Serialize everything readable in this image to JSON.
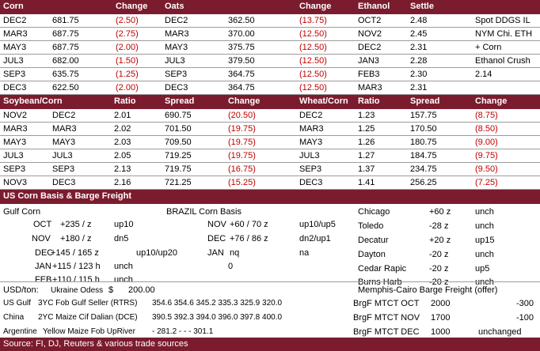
{
  "table1": {
    "headers": [
      "Corn",
      "Change",
      "Oats",
      "Change",
      "Ethanol",
      "Settle"
    ],
    "rows": [
      {
        "c_month": "DEC2",
        "c_price": "681.75",
        "c_chg": "(2.50)",
        "o_month": "DEC2",
        "o_price": "362.50",
        "o_chg": "(13.75)",
        "e_month": "OCT2",
        "e_settle": "2.48",
        "note": "Spot DDGS IL"
      },
      {
        "c_month": "MAR3",
        "c_price": "687.75",
        "c_chg": "(2.75)",
        "o_month": "MAR3",
        "o_price": "370.00",
        "o_chg": "(12.50)",
        "e_month": "NOV2",
        "e_settle": "2.45",
        "note": "NYM Chi. ETH"
      },
      {
        "c_month": "MAY3",
        "c_price": "687.75",
        "c_chg": "(2.00)",
        "o_month": "MAY3",
        "o_price": "375.75",
        "o_chg": "(12.50)",
        "e_month": "DEC2",
        "e_settle": "2.31",
        "note": "+ Corn"
      },
      {
        "c_month": "JUL3",
        "c_price": "682.00",
        "c_chg": "(1.50)",
        "o_month": "JUL3",
        "o_price": "379.50",
        "o_chg": "(12.50)",
        "e_month": "JAN3",
        "e_settle": "2.28",
        "note": "Ethanol Crush"
      },
      {
        "c_month": "SEP3",
        "c_price": "635.75",
        "c_chg": "(1.25)",
        "o_month": "SEP3",
        "o_price": "364.75",
        "o_chg": "(12.50)",
        "e_month": "FEB3",
        "e_settle": "2.30",
        "note": "2.14"
      },
      {
        "c_month": "DEC3",
        "c_price": "622.50",
        "c_chg": "(2.00)",
        "o_month": "DEC3",
        "o_price": "364.75",
        "o_chg": "(12.50)",
        "e_month": "MAR3",
        "e_settle": "2.31",
        "note": ""
      }
    ]
  },
  "table2": {
    "headers": [
      "Soybean/Corn",
      "Ratio",
      "Spread",
      "Change",
      "Wheat/Corn",
      "Ratio",
      "Spread",
      "Change"
    ],
    "rows": [
      {
        "s1": "NOV2",
        "s2": "DEC2",
        "ratio": "2.01",
        "spread": "690.75",
        "chg": "(20.50)",
        "w": "DEC2",
        "w_ratio": "1.23",
        "w_spread": "157.75",
        "w_chg": "(8.75)"
      },
      {
        "s1": "MAR3",
        "s2": "MAR3",
        "ratio": "2.02",
        "spread": "701.50",
        "chg": "(19.75)",
        "w": "MAR3",
        "w_ratio": "1.25",
        "w_spread": "170.50",
        "w_chg": "(8.50)"
      },
      {
        "s1": "MAY3",
        "s2": "MAY3",
        "ratio": "2.03",
        "spread": "709.50",
        "chg": "(19.75)",
        "w": "MAY3",
        "w_ratio": "1.26",
        "w_spread": "180.75",
        "w_chg": "(9.00)"
      },
      {
        "s1": "JUL3",
        "s2": "JUL3",
        "ratio": "2.05",
        "spread": "719.25",
        "chg": "(19.75)",
        "w": "JUL3",
        "w_ratio": "1.27",
        "w_spread": "184.75",
        "w_chg": "(9.75)"
      },
      {
        "s1": "SEP3",
        "s2": "SEP3",
        "ratio": "2.13",
        "spread": "719.75",
        "chg": "(16.75)",
        "w": "SEP3",
        "w_ratio": "1.37",
        "w_spread": "234.75",
        "w_chg": "(9.50)"
      },
      {
        "s1": "NOV3",
        "s2": "DEC3",
        "ratio": "2.16",
        "spread": "721.25",
        "chg": "(15.25)",
        "w": "DEC3",
        "w_ratio": "1.41",
        "w_spread": "256.25",
        "w_chg": "(7.25)"
      }
    ]
  },
  "basis": {
    "title": "US Corn Basis & Barge Freight",
    "gulf_title": "Gulf Corn",
    "brazil_title": "BRAZIL Corn Basis",
    "gulf_rows": [
      {
        "month": "OCT",
        "val": "+235 / z",
        "ref": "up10"
      },
      {
        "month": "NOV",
        "val": "+180 / z",
        "ref": "dn5"
      },
      {
        "month": "DEC",
        "val": "+145 / 165 z",
        "ref": "up10/up20"
      },
      {
        "month": "JAN",
        "val": "+115 / 123 h",
        "ref": "unch"
      },
      {
        "month": "FEB",
        "val": "+110 / 115 h",
        "ref": "unch"
      }
    ],
    "brazil_rows": [
      {
        "month": "NOV",
        "val": "+60 / 70 z",
        "ref": "up10/up5"
      },
      {
        "month": "DEC",
        "val": "+76 / 86 z",
        "ref": "dn2/up1"
      },
      {
        "month": "JAN",
        "val": "nq",
        "ref": "na"
      },
      {
        "month": "",
        "val": "0",
        "ref": ""
      }
    ],
    "interior_rows": [
      {
        "loc": "Chicago",
        "val": "+60 z",
        "ref": "unch"
      },
      {
        "loc": "Toledo",
        "val": "-28 z",
        "ref": "unch"
      },
      {
        "loc": "Decatur",
        "val": "+20 z",
        "ref": "up15"
      },
      {
        "loc": "Dayton",
        "val": "-20 z",
        "ref": "unch"
      },
      {
        "loc": "Cedar Rapic",
        "val": "-20 z",
        "ref": "up5"
      },
      {
        "loc": "Burns Harb",
        "val": "-20 z",
        "ref": "unch"
      }
    ]
  },
  "export": {
    "usd_label": "USD/ton:",
    "odessa_label": "Ukraine Odess",
    "odessa_cur": "$",
    "odessa_val": "200.00",
    "rows": [
      {
        "origin": "US Gulf",
        "desc": "3YC Fob Gulf Seller (RTRS)",
        "vals": "354.6  354.6  345.2  335.3  325.9  320.0"
      },
      {
        "origin": "China",
        "desc": "2YC Maize Cif Dalian (DCE)",
        "vals": "390.5  392.3  394.0  396.0  397.8  400.0"
      },
      {
        "origin": "Argentine",
        "desc": "Yellow Maize Fob UpRiver",
        "vals": "-  281.2  -  -  -  301.1"
      }
    ],
    "barge_title": "Memphis-Cairo Barge Freight (offer)",
    "barge_rows": [
      {
        "label": "BrgF MTCT OCT",
        "val": "2000",
        "chg": "-300"
      },
      {
        "label": "BrgF MTCT NOV",
        "val": "1700",
        "chg": "-100"
      },
      {
        "label": "BrgF MTCT DEC",
        "val": "1000",
        "chg": "unchanged"
      }
    ]
  },
  "footer": {
    "source": "Source: FI, DJ, Reuters & various trade sources"
  },
  "colors": {
    "header_bg": "#7b1c2e",
    "negative": "#c00000"
  }
}
